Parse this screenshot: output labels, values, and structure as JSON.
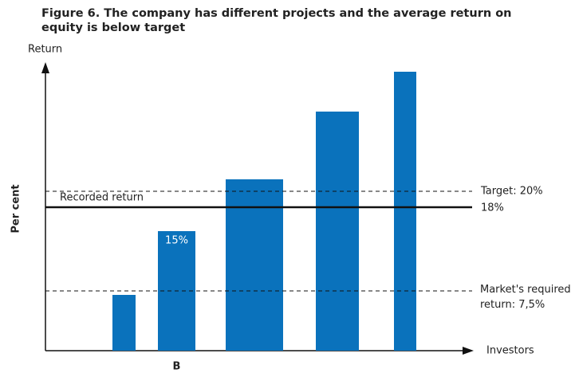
{
  "chart_data": {
    "type": "bar",
    "title": "Figure 6. The company has different projects and the average return on equity is below target",
    "y_axis_title": "Return",
    "y_label": "Per cent",
    "x_label": "Investors",
    "categories": [
      null,
      "B",
      null,
      null,
      null
    ],
    "values": [
      7,
      15,
      21.5,
      30,
      35
    ],
    "value_labels": [
      null,
      "15%",
      null,
      null,
      null
    ],
    "color": "#0a72bc",
    "ylim": [
      0,
      36
    ],
    "reference_lines": [
      {
        "name": "Target: 20%",
        "value": 20,
        "style": "dashed"
      },
      {
        "name": "Recorded return",
        "value": 18,
        "value_label": "18%",
        "style": "solid"
      },
      {
        "name": "Market's required return: 7,5%",
        "value": 7.5,
        "style": "dashed"
      }
    ]
  }
}
